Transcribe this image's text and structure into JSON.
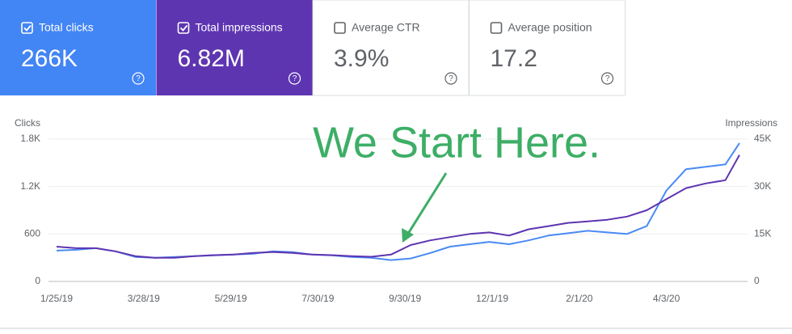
{
  "metrics": [
    {
      "label": "Total clicks",
      "value": "266K",
      "checked": true,
      "color": "#4285f4"
    },
    {
      "label": "Total impressions",
      "value": "6.82M",
      "checked": true,
      "color": "#5e35b1"
    },
    {
      "label": "Average CTR",
      "value": "3.9%",
      "checked": false,
      "color": "#ffffff"
    },
    {
      "label": "Average position",
      "value": "17.2",
      "checked": false,
      "color": "#ffffff"
    }
  ],
  "chart_data": {
    "type": "line",
    "annotation": "We Start Here.",
    "y_label": "Clicks",
    "y2_label": "Impressions",
    "x": [
      "1/25/19",
      "2/8/19",
      "2/22/19",
      "3/8/19",
      "3/22/19",
      "4/5/19",
      "4/19/19",
      "5/3/19",
      "5/17/19",
      "5/31/19",
      "6/14/19",
      "6/28/19",
      "7/12/19",
      "7/26/19",
      "8/9/19",
      "8/23/19",
      "9/6/19",
      "9/20/19",
      "10/4/19",
      "10/18/19",
      "11/1/19",
      "11/15/19",
      "11/29/19",
      "12/13/19",
      "12/27/19",
      "1/10/20",
      "1/24/20",
      "2/7/20",
      "2/21/20",
      "3/6/20",
      "3/20/20",
      "4/3/20",
      "4/17/20",
      "5/1/20",
      "5/15/20",
      "5/25/20"
    ],
    "xlim": [
      "1/25/19",
      "5/25/20"
    ],
    "xticks": [
      "1/25/19",
      "3/28/19",
      "5/29/19",
      "7/30/19",
      "9/30/19",
      "12/1/19",
      "2/1/20",
      "4/3/20"
    ],
    "ylim": [
      0,
      1800
    ],
    "yticks": [
      0,
      600,
      {
        "value": 1200,
        "label": "1.2K"
      },
      {
        "value": 1800,
        "label": "1.8K"
      }
    ],
    "y2lim": [
      0,
      45000
    ],
    "y2ticks": [
      0,
      {
        "value": 15000,
        "label": "15K"
      },
      {
        "value": 30000,
        "label": "30K"
      },
      {
        "value": 45000,
        "label": "45K"
      }
    ],
    "grid": true,
    "series": [
      {
        "name": "Clicks",
        "color": "#4a8af4",
        "values": [
          390,
          400,
          420,
          380,
          310,
          300,
          310,
          320,
          330,
          340,
          350,
          380,
          370,
          340,
          330,
          310,
          300,
          270,
          290,
          360,
          440,
          470,
          500,
          470,
          520,
          580,
          610,
          640,
          620,
          600,
          700,
          1150,
          1420,
          1450,
          1480,
          1750
        ]
      },
      {
        "name": "Impressions",
        "color": "#5e35b1",
        "axis": "y2",
        "values": [
          11000,
          10500,
          10500,
          9500,
          8000,
          7500,
          7500,
          8000,
          8300,
          8500,
          9000,
          9300,
          9000,
          8500,
          8300,
          8000,
          7800,
          8500,
          11500,
          13000,
          14000,
          15000,
          15500,
          14500,
          16500,
          17500,
          18500,
          19000,
          19500,
          20500,
          22500,
          26000,
          29500,
          31000,
          32000,
          40000
        ]
      }
    ]
  }
}
